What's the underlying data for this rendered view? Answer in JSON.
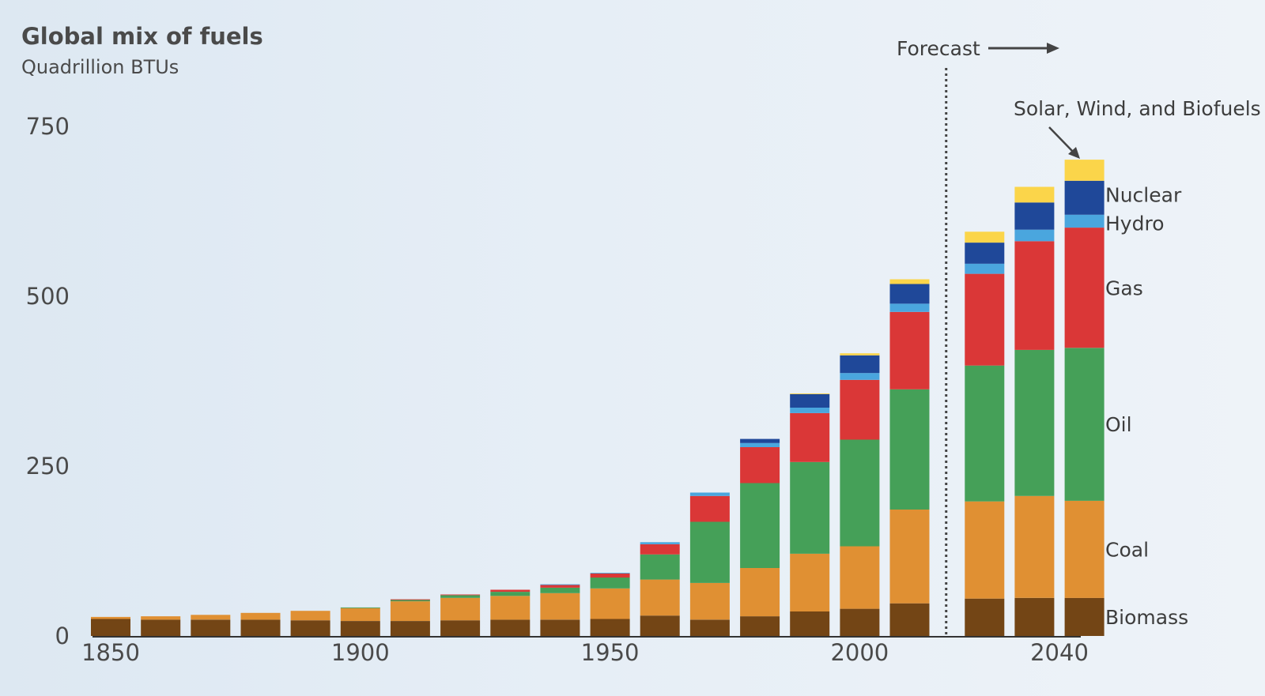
{
  "chart_data": {
    "type": "bar",
    "stacked": true,
    "title": "Global mix of fuels",
    "subtitle": "Quadrillion BTUs",
    "ylim": [
      0,
      750
    ],
    "yticks": [
      0,
      250,
      500,
      750
    ],
    "xticks": [
      1850,
      1900,
      1950,
      2000,
      2040
    ],
    "forecast_label": "Forecast",
    "forecast_start": 2017,
    "annotation": "Solar, Wind, and Biofuels",
    "x": [
      1850,
      1860,
      1870,
      1880,
      1890,
      1900,
      1910,
      1920,
      1930,
      1940,
      1950,
      1960,
      1970,
      1980,
      1990,
      2000,
      2010,
      2025,
      2035,
      2045
    ],
    "series": [
      {
        "name": "Biomass",
        "color": "#734515",
        "values": [
          25,
          24,
          24,
          24,
          23,
          22,
          22,
          23,
          24,
          24,
          25,
          30,
          24,
          29,
          36,
          40,
          48,
          55,
          56,
          56
        ]
      },
      {
        "name": "Coal",
        "color": "#e09033",
        "values": [
          3,
          5,
          7,
          10,
          14,
          19,
          29,
          33,
          35,
          39,
          45,
          53,
          54,
          71,
          85,
          92,
          138,
          143,
          150,
          143
        ]
      },
      {
        "name": "Oil",
        "color": "#45a058",
        "values": [
          0,
          0,
          0,
          0,
          0,
          1,
          2,
          4,
          6,
          8,
          16,
          37,
          90,
          125,
          135,
          157,
          177,
          200,
          215,
          225
        ]
      },
      {
        "name": "Gas",
        "color": "#da3737",
        "values": [
          0,
          0,
          0,
          0,
          0,
          0,
          1,
          1,
          3,
          4,
          6,
          15,
          38,
          53,
          72,
          88,
          114,
          135,
          160,
          177
        ]
      },
      {
        "name": "Hydro",
        "color": "#4aa6de",
        "values": [
          0,
          0,
          0,
          0,
          0,
          0,
          0,
          0,
          0,
          1,
          1,
          3,
          5,
          6,
          8,
          10,
          12,
          15,
          17,
          19
        ]
      },
      {
        "name": "Nuclear",
        "color": "#1f4899",
        "values": [
          0,
          0,
          0,
          0,
          0,
          0,
          0,
          0,
          0,
          0,
          0,
          0,
          0,
          6,
          20,
          26,
          29,
          31,
          40,
          50
        ]
      },
      {
        "name": "Solar, Wind, and Biofuels",
        "color": "#fbd54a",
        "values": [
          0,
          0,
          0,
          0,
          0,
          0,
          0,
          0,
          0,
          0,
          0,
          0,
          0,
          0,
          1,
          3,
          7,
          16,
          23,
          31
        ]
      }
    ],
    "series_labels": [
      "Biomass",
      "Coal",
      "Oil",
      "Gas",
      "Hydro",
      "Nuclear"
    ]
  }
}
